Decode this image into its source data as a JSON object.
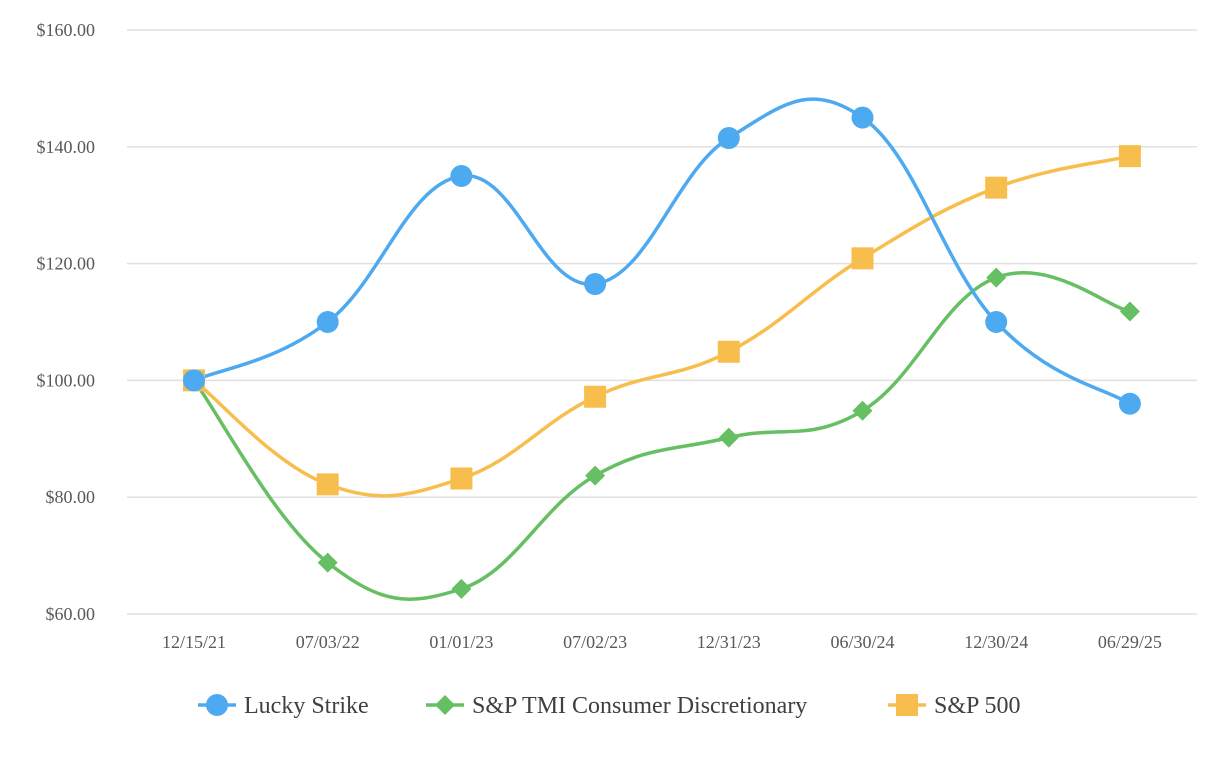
{
  "chart_data": {
    "type": "line",
    "categories": [
      "12/15/21",
      "07/03/22",
      "01/01/23",
      "07/02/23",
      "12/31/23",
      "06/30/24",
      "12/30/24",
      "06/29/25"
    ],
    "yticks": [
      "$60.00",
      "$80.00",
      "$100.00",
      "$120.00",
      "$140.00",
      "$160.00"
    ],
    "ylim": [
      60,
      160
    ],
    "grid": true,
    "legend_position": "bottom",
    "series": [
      {
        "name": "Lucky Strike",
        "color": "#4DAAF0",
        "marker": "circle",
        "values": [
          100.0,
          110.0,
          135.0,
          116.5,
          141.5,
          145.0,
          110.0,
          96.0
        ]
      },
      {
        "name": "S&P TMI Consumer Discretionary",
        "color": "#66BF63",
        "marker": "diamond",
        "values": [
          100.0,
          68.8,
          64.3,
          83.7,
          90.2,
          94.8,
          117.6,
          111.8
        ]
      },
      {
        "name": "S&P 500",
        "color": "#F7BE4D",
        "marker": "square",
        "values": [
          100.0,
          82.2,
          83.2,
          97.2,
          104.9,
          120.9,
          133.0,
          138.4
        ]
      }
    ]
  }
}
